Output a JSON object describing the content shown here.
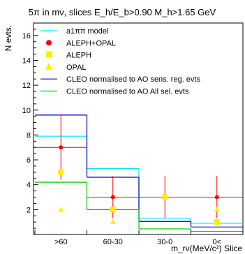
{
  "title": "5π in mν, slices  E_h/E_b>0.90 M_h>1.65 GeV",
  "chart_data": {
    "type": "histogram",
    "title": "5π in mν, slices  E_h/E_b>0.90 M_h>1.65 GeV",
    "xlabel": "m_rν(MeV/c²) Slice",
    "ylabel": "N evts.",
    "categories": [
      ">60",
      "60-30",
      "30-0",
      "0<"
    ],
    "ylim": [
      0,
      17
    ],
    "yticks": [
      0,
      2,
      4,
      6,
      8,
      10,
      12,
      14,
      16
    ],
    "grid": false,
    "legend_position": "top-right",
    "series": [
      {
        "name": "a1ππ model",
        "kind": "hist",
        "color": "#00e5ee",
        "values": [
          7.9,
          5.3,
          1.3,
          0.9
        ]
      },
      {
        "name": "ALEPH+OPAL",
        "kind": "points-err",
        "color": "#ff0000",
        "values": [
          7.0,
          3.0,
          3.0,
          3.0
        ],
        "errors": [
          2.6,
          1.7,
          1.7,
          1.7
        ]
      },
      {
        "name": "ALEPH",
        "kind": "square",
        "color": "#ffee00",
        "values": [
          5.0,
          2.0,
          3.0,
          1.0
        ]
      },
      {
        "name": "OPAL",
        "kind": "triangle",
        "color": "#ffee00",
        "values": [
          2.0,
          1.0,
          null,
          2.0
        ]
      },
      {
        "name": "CLEO normalised to AO sens. reg. evts",
        "kind": "hist",
        "color": "#0000cc",
        "values": [
          9.6,
          4.6,
          1.05,
          0.6
        ]
      },
      {
        "name": "CLEO normalised to AO All sel. evts",
        "kind": "hist",
        "color": "#00cc00",
        "values": [
          4.2,
          2.0,
          0.45,
          0.25
        ]
      }
    ]
  }
}
